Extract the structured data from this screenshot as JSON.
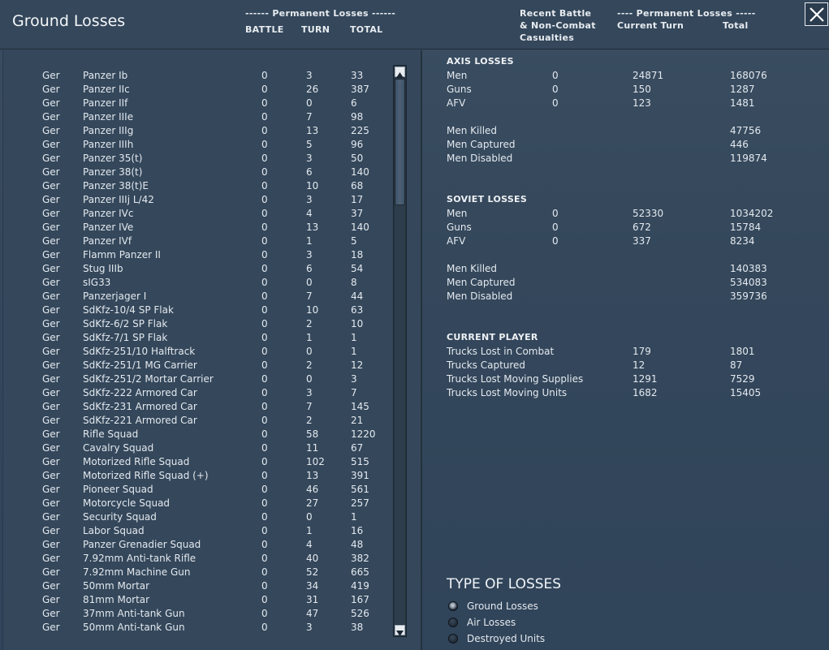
{
  "header": {
    "title": "Ground Losses",
    "perm_left": "------ Permanent Losses ------",
    "col_battle": "BATTLE",
    "col_turn": "TURN",
    "col_total": "TOTAL",
    "recent_1": "Recent Battle",
    "recent_2": "& Non-Combat",
    "recent_3": "Casualties",
    "perm_right": "---- Permanent Losses -----",
    "current_turn": "Current Turn",
    "total_right": "Total"
  },
  "units": [
    {
      "nat": "Ger",
      "name": "Panzer Ib",
      "battle": "0",
      "turn": "3",
      "total": "33"
    },
    {
      "nat": "Ger",
      "name": "Panzer IIc",
      "battle": "0",
      "turn": "26",
      "total": "387"
    },
    {
      "nat": "Ger",
      "name": "Panzer IIf",
      "battle": "0",
      "turn": "0",
      "total": "6"
    },
    {
      "nat": "Ger",
      "name": "Panzer IIIe",
      "battle": "0",
      "turn": "7",
      "total": "98"
    },
    {
      "nat": "Ger",
      "name": "Panzer IIIg",
      "battle": "0",
      "turn": "13",
      "total": "225"
    },
    {
      "nat": "Ger",
      "name": "Panzer IIIh",
      "battle": "0",
      "turn": "5",
      "total": "96"
    },
    {
      "nat": "Ger",
      "name": "Panzer 35(t)",
      "battle": "0",
      "turn": "3",
      "total": "50"
    },
    {
      "nat": "Ger",
      "name": "Panzer 38(t)",
      "battle": "0",
      "turn": "6",
      "total": "140"
    },
    {
      "nat": "Ger",
      "name": "Panzer 38(t)E",
      "battle": "0",
      "turn": "10",
      "total": "68"
    },
    {
      "nat": "Ger",
      "name": "Panzer IIIj L/42",
      "battle": "0",
      "turn": "3",
      "total": "17"
    },
    {
      "nat": "Ger",
      "name": "Panzer IVc",
      "battle": "0",
      "turn": "4",
      "total": "37"
    },
    {
      "nat": "Ger",
      "name": "Panzer IVe",
      "battle": "0",
      "turn": "13",
      "total": "140"
    },
    {
      "nat": "Ger",
      "name": "Panzer IVf",
      "battle": "0",
      "turn": "1",
      "total": "5"
    },
    {
      "nat": "Ger",
      "name": "Flamm Panzer II",
      "battle": "0",
      "turn": "3",
      "total": "18"
    },
    {
      "nat": "Ger",
      "name": "Stug IIIb",
      "battle": "0",
      "turn": "6",
      "total": "54"
    },
    {
      "nat": "Ger",
      "name": "sIG33",
      "battle": "0",
      "turn": "0",
      "total": "8"
    },
    {
      "nat": "Ger",
      "name": "Panzerjager I",
      "battle": "0",
      "turn": "7",
      "total": "44"
    },
    {
      "nat": "Ger",
      "name": "SdKfz-10/4 SP Flak",
      "battle": "0",
      "turn": "10",
      "total": "63"
    },
    {
      "nat": "Ger",
      "name": "SdKfz-6/2 SP Flak",
      "battle": "0",
      "turn": "2",
      "total": "10"
    },
    {
      "nat": "Ger",
      "name": "SdKfz-7/1 SP Flak",
      "battle": "0",
      "turn": "1",
      "total": "1"
    },
    {
      "nat": "Ger",
      "name": "SdKfz-251/10 Halftrack",
      "battle": "0",
      "turn": "0",
      "total": "1"
    },
    {
      "nat": "Ger",
      "name": "SdKfz-251/1 MG Carrier",
      "battle": "0",
      "turn": "2",
      "total": "12"
    },
    {
      "nat": "Ger",
      "name": "SdKfz-251/2 Mortar Carrier",
      "battle": "0",
      "turn": "0",
      "total": "3"
    },
    {
      "nat": "Ger",
      "name": "SdKfz-222 Armored Car",
      "battle": "0",
      "turn": "3",
      "total": "7"
    },
    {
      "nat": "Ger",
      "name": "SdKfz-231 Armored Car",
      "battle": "0",
      "turn": "7",
      "total": "145"
    },
    {
      "nat": "Ger",
      "name": "SdKfz-221 Armored Car",
      "battle": "0",
      "turn": "2",
      "total": "21"
    },
    {
      "nat": "Ger",
      "name": "Rifle Squad",
      "battle": "0",
      "turn": "58",
      "total": "1220"
    },
    {
      "nat": "Ger",
      "name": "Cavalry Squad",
      "battle": "0",
      "turn": "11",
      "total": "67"
    },
    {
      "nat": "Ger",
      "name": "Motorized Rifle Squad",
      "battle": "0",
      "turn": "102",
      "total": "515"
    },
    {
      "nat": "Ger",
      "name": "Motorized Rifle Squad (+)",
      "battle": "0",
      "turn": "13",
      "total": "391"
    },
    {
      "nat": "Ger",
      "name": "Pioneer Squad",
      "battle": "0",
      "turn": "46",
      "total": "561"
    },
    {
      "nat": "Ger",
      "name": "Motorcycle Squad",
      "battle": "0",
      "turn": "27",
      "total": "257"
    },
    {
      "nat": "Ger",
      "name": "Security Squad",
      "battle": "0",
      "turn": "0",
      "total": "1"
    },
    {
      "nat": "Ger",
      "name": "Labor Squad",
      "battle": "0",
      "turn": "1",
      "total": "16"
    },
    {
      "nat": "Ger",
      "name": "Panzer Grenadier Squad",
      "battle": "0",
      "turn": "4",
      "total": "48"
    },
    {
      "nat": "Ger",
      "name": "7.92mm Anti-tank Rifle",
      "battle": "0",
      "turn": "40",
      "total": "382"
    },
    {
      "nat": "Ger",
      "name": "7.92mm Machine Gun",
      "battle": "0",
      "turn": "52",
      "total": "665"
    },
    {
      "nat": "Ger",
      "name": "50mm Mortar",
      "battle": "0",
      "turn": "34",
      "total": "419"
    },
    {
      "nat": "Ger",
      "name": "81mm Mortar",
      "battle": "0",
      "turn": "31",
      "total": "167"
    },
    {
      "nat": "Ger",
      "name": "37mm Anti-tank Gun",
      "battle": "0",
      "turn": "47",
      "total": "526"
    },
    {
      "nat": "Ger",
      "name": "50mm Anti-tank Gun",
      "battle": "0",
      "turn": "3",
      "total": "38"
    }
  ],
  "axis": {
    "title": "AXIS LOSSES",
    "rows": [
      {
        "label": "Men",
        "battle": "0",
        "turn": "24871",
        "total": "168076"
      },
      {
        "label": "Guns",
        "battle": "0",
        "turn": "150",
        "total": "1287"
      },
      {
        "label": "AFV",
        "battle": "0",
        "turn": "123",
        "total": "1481"
      }
    ],
    "details": [
      {
        "label": "Men Killed",
        "total": "47756"
      },
      {
        "label": "Men Captured",
        "total": "446"
      },
      {
        "label": "Men Disabled",
        "total": "119874"
      }
    ]
  },
  "soviet": {
    "title": "SOVIET LOSSES",
    "rows": [
      {
        "label": "Men",
        "battle": "0",
        "turn": "52330",
        "total": "1034202"
      },
      {
        "label": "Guns",
        "battle": "0",
        "turn": "672",
        "total": "15784"
      },
      {
        "label": "AFV",
        "battle": "0",
        "turn": "337",
        "total": "8234"
      }
    ],
    "details": [
      {
        "label": "Men Killed",
        "total": "140383"
      },
      {
        "label": "Men Captured",
        "total": "534083"
      },
      {
        "label": "Men Disabled",
        "total": "359736"
      }
    ]
  },
  "player": {
    "title": "CURRENT PLAYER",
    "rows": [
      {
        "label": "Trucks Lost in Combat",
        "turn": "179",
        "total": "1801"
      },
      {
        "label": "Trucks Captured",
        "turn": "12",
        "total": "87"
      },
      {
        "label": "Trucks Lost Moving Supplies",
        "turn": "1291",
        "total": "7529"
      },
      {
        "label": "Trucks Lost Moving Units",
        "turn": "1682",
        "total": "15405"
      }
    ]
  },
  "type_of_losses": {
    "title": "TYPE OF LOSSES",
    "options": [
      {
        "label": "Ground Losses",
        "selected": true
      },
      {
        "label": "Air Losses",
        "selected": false
      },
      {
        "label": "Destroyed Units",
        "selected": false
      }
    ]
  },
  "icons": {
    "close": "close-icon",
    "scroll_up": "arrow-up-icon",
    "scroll_down": "arrow-down-icon"
  }
}
